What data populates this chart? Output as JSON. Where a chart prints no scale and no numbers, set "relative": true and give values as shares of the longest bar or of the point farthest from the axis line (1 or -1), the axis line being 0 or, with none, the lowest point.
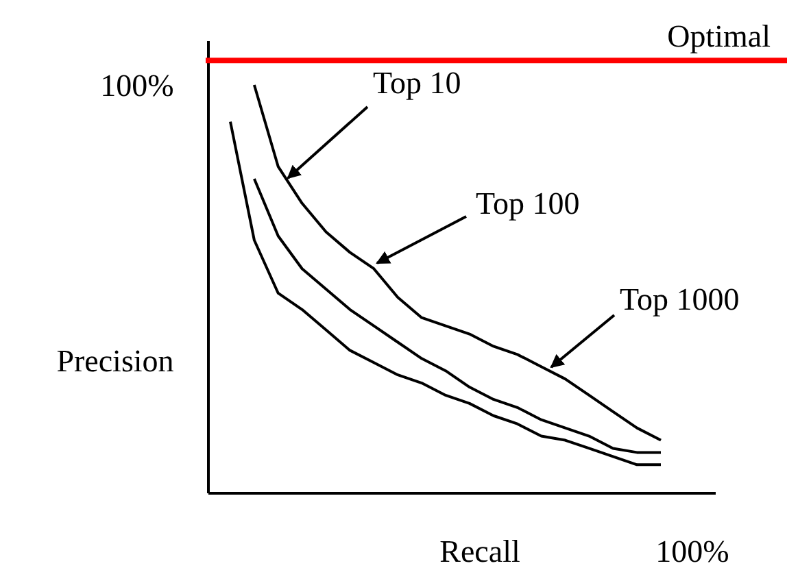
{
  "chart_data": {
    "type": "line",
    "relative": true,
    "xlabel": "Recall",
    "ylabel": "Precision",
    "categories": [
      null,
      null,
      null,
      null,
      null,
      null,
      null,
      null,
      null,
      null,
      null,
      null,
      null,
      null,
      null,
      null,
      null,
      null,
      null
    ],
    "series": [
      {
        "color": "#000000",
        "values": [
          null,
          1.0,
          0.8,
          0.71,
          0.64,
          0.59,
          0.55,
          0.48,
          0.43,
          0.41,
          0.39,
          0.36,
          0.34,
          0.31,
          0.28,
          0.24,
          0.2,
          0.16,
          0.13
        ]
      },
      {
        "color": "#000000",
        "values": [
          null,
          0.77,
          0.63,
          0.55,
          0.5,
          0.45,
          0.41,
          0.37,
          0.33,
          0.3,
          0.26,
          0.23,
          0.21,
          0.18,
          0.16,
          0.14,
          0.11,
          0.1,
          0.1
        ]
      },
      {
        "color": "#000000",
        "values": [
          0.91,
          0.62,
          0.49,
          0.45,
          0.4,
          0.35,
          0.32,
          0.29,
          0.27,
          0.24,
          0.22,
          0.19,
          0.17,
          0.14,
          0.13,
          0.11,
          0.09,
          0.07,
          0.07
        ]
      }
    ],
    "ref_lines": [
      {
        "axis": "y",
        "value": 1.06,
        "label": "Optimal",
        "color": "#ff0000"
      }
    ],
    "annotations": [
      "100%",
      "100%",
      "Top 10",
      "Top 100",
      "Top 1000"
    ],
    "marker": "none",
    "line_style": "solid"
  }
}
